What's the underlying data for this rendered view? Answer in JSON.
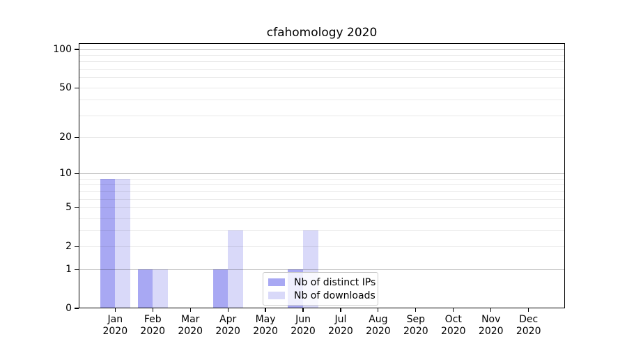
{
  "title": "cfahomology 2020",
  "chart_data": {
    "type": "bar",
    "title": "cfahomology 2020",
    "categories": [
      "Jan",
      "Feb",
      "Mar",
      "Apr",
      "May",
      "Jun",
      "Jul",
      "Aug",
      "Sep",
      "Oct",
      "Nov",
      "Dec"
    ],
    "category_year": "2020",
    "series": [
      {
        "name": "Nb of distinct IPs",
        "color": "#a8a8f3",
        "values": [
          9,
          1,
          0,
          1,
          0,
          1,
          0,
          0,
          0,
          0,
          0,
          0
        ]
      },
      {
        "name": "Nb of downloads",
        "color": "#d9d9f9",
        "values": [
          9,
          1,
          0,
          3,
          0,
          3,
          0,
          0,
          0,
          0,
          0,
          0
        ]
      }
    ],
    "xlabel": "",
    "ylabel": "",
    "yscale": "log1p",
    "ylim": [
      0,
      112
    ],
    "yticks": [
      0,
      1,
      2,
      5,
      10,
      20,
      50,
      100
    ],
    "major_gridlines": [
      1,
      10,
      100
    ],
    "minor_gridlines": [
      2,
      3,
      4,
      5,
      6,
      7,
      8,
      9,
      20,
      30,
      40,
      50,
      60,
      70,
      80,
      90
    ],
    "grid": true,
    "legend_position": "bottom-center"
  },
  "colors": {
    "background": "#ffffff",
    "spine": "#000000",
    "grid_major": "#bfbfbf",
    "grid_minor": "#ebebeb",
    "legend_border": "#cccccc"
  }
}
